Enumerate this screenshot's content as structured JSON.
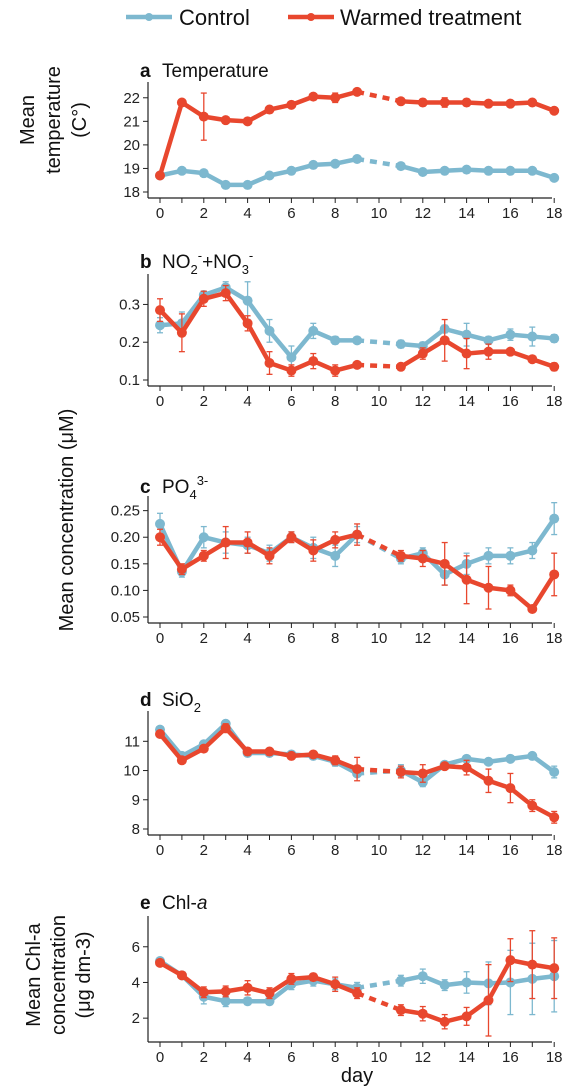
{
  "legend": {
    "control_label": "Control",
    "warmed_label": "Warmed treatment"
  },
  "colors": {
    "control": "#7db8cf",
    "warmed": "#e8472e"
  },
  "labels": {
    "temp_ylabel": [
      "Mean",
      "temperature",
      "(C°)"
    ],
    "conc_ylabel": "Mean concentration (μM)",
    "chl_ylabel": [
      "Mean Chl-a",
      "concentration",
      "(μg dm-3)"
    ],
    "xlabel": "day"
  },
  "chart_data": [
    {
      "type": "line",
      "letter": "a",
      "title": "Temperature",
      "ylim": [
        18,
        22.5
      ],
      "yticks": [
        18,
        19,
        20,
        21,
        22
      ],
      "x": [
        0,
        1,
        2,
        3,
        4,
        5,
        6,
        7,
        8,
        9,
        11,
        12,
        13,
        14,
        15,
        16,
        17,
        18
      ],
      "series": [
        {
          "name": "Control",
          "values": [
            18.7,
            18.9,
            18.8,
            18.3,
            18.3,
            18.7,
            18.9,
            19.15,
            19.2,
            19.4,
            19.1,
            18.85,
            18.9,
            18.95,
            18.9,
            18.9,
            18.9,
            18.6
          ],
          "err": [
            0,
            0.05,
            0,
            0,
            0.05,
            0,
            0,
            0,
            0,
            0,
            0,
            0,
            0,
            0,
            0,
            0,
            0,
            0
          ]
        },
        {
          "name": "Warmed treatment",
          "values": [
            18.7,
            21.8,
            21.2,
            21.05,
            21.0,
            21.5,
            21.7,
            22.05,
            22.0,
            22.25,
            21.85,
            21.8,
            21.8,
            21.8,
            21.75,
            21.75,
            21.8,
            21.45
          ],
          "err": [
            0,
            0,
            1.0,
            0,
            0,
            0,
            0,
            0.1,
            0.2,
            0,
            0,
            0.15,
            0.2,
            0.15,
            0,
            0,
            0,
            0.1
          ]
        }
      ]
    },
    {
      "type": "line",
      "letter": "b",
      "title": "NO2-+NO3-",
      "ylim": [
        0.1,
        0.37
      ],
      "yticks": [
        0.1,
        0.2,
        0.3
      ],
      "x": [
        0,
        1,
        2,
        3,
        4,
        5,
        6,
        7,
        8,
        9,
        11,
        12,
        13,
        14,
        15,
        16,
        17,
        18
      ],
      "series": [
        {
          "name": "Control",
          "values": [
            0.245,
            0.25,
            0.325,
            0.345,
            0.31,
            0.23,
            0.16,
            0.23,
            0.205,
            0.205,
            0.195,
            0.19,
            0.235,
            0.22,
            0.205,
            0.22,
            0.215,
            0.21
          ],
          "err": [
            0.02,
            0.03,
            0.01,
            0.015,
            0.05,
            0.03,
            0.03,
            0.02,
            0.01,
            0,
            0.01,
            0.01,
            0.01,
            0.03,
            0.01,
            0.015,
            0.025,
            0.01
          ]
        },
        {
          "name": "Warmed treatment",
          "values": [
            0.285,
            0.225,
            0.315,
            0.33,
            0.25,
            0.145,
            0.125,
            0.15,
            0.125,
            0.14,
            0.135,
            0.17,
            0.205,
            0.17,
            0.175,
            0.175,
            0.155,
            0.135
          ],
          "err": [
            0.03,
            0.05,
            0.02,
            0.02,
            0.02,
            0.03,
            0.015,
            0.02,
            0.015,
            0,
            0,
            0.015,
            0.055,
            0.04,
            0.02,
            0,
            0,
            0.01
          ]
        }
      ]
    },
    {
      "type": "line",
      "letter": "c",
      "title": "PO43-",
      "ylim": [
        0.05,
        0.27
      ],
      "yticks": [
        0.05,
        0.1,
        0.15,
        0.2,
        0.25
      ],
      "x": [
        0,
        1,
        2,
        3,
        4,
        5,
        6,
        7,
        8,
        9,
        11,
        12,
        13,
        14,
        15,
        16,
        17,
        18
      ],
      "series": [
        {
          "name": "Control",
          "values": [
            0.225,
            0.135,
            0.2,
            0.19,
            0.185,
            0.17,
            0.2,
            0.18,
            0.165,
            0.205,
            0.16,
            0.17,
            0.13,
            0.15,
            0.165,
            0.165,
            0.175,
            0.235
          ],
          "err": [
            0.02,
            0.01,
            0.02,
            0.02,
            0.015,
            0.015,
            0.01,
            0.02,
            0.02,
            0.015,
            0.01,
            0.01,
            0.02,
            0.02,
            0.015,
            0.015,
            0.015,
            0.03
          ]
        },
        {
          "name": "Warmed treatment",
          "values": [
            0.2,
            0.14,
            0.165,
            0.19,
            0.19,
            0.165,
            0.2,
            0.175,
            0.195,
            0.205,
            0.165,
            0.16,
            0.15,
            0.12,
            0.105,
            0.1,
            0.065,
            0.13
          ],
          "err": [
            0.015,
            0.01,
            0.01,
            0.03,
            0.02,
            0.015,
            0.01,
            0.02,
            0.015,
            0.02,
            0.01,
            0.015,
            0.04,
            0.045,
            0.04,
            0.01,
            0.005,
            0.04
          ]
        }
      ]
    },
    {
      "type": "line",
      "letter": "d",
      "title": "SiO2",
      "ylim": [
        8,
        11.9
      ],
      "yticks": [
        8,
        9,
        10,
        11
      ],
      "x": [
        0,
        1,
        2,
        3,
        4,
        5,
        6,
        7,
        8,
        9,
        11,
        12,
        13,
        14,
        15,
        16,
        17,
        18
      ],
      "series": [
        {
          "name": "Control",
          "values": [
            11.4,
            10.5,
            10.9,
            11.6,
            10.6,
            10.6,
            10.55,
            10.5,
            10.3,
            9.9,
            10.0,
            9.6,
            10.2,
            10.4,
            10.3,
            10.4,
            10.5,
            9.95
          ],
          "err": [
            0.1,
            0.1,
            0.1,
            0.1,
            0.1,
            0.1,
            0.1,
            0.1,
            0.15,
            0.1,
            0.2,
            0.15,
            0.1,
            0.1,
            0.1,
            0.1,
            0.1,
            0.2
          ]
        },
        {
          "name": "Warmed treatment",
          "values": [
            11.25,
            10.35,
            10.75,
            11.45,
            10.65,
            10.65,
            10.5,
            10.55,
            10.35,
            10.05,
            9.95,
            9.9,
            10.15,
            10.1,
            9.65,
            9.4,
            8.8,
            8.4
          ],
          "err": [
            0.1,
            0.1,
            0.1,
            0.15,
            0.1,
            0.1,
            0.1,
            0.1,
            0.15,
            0.4,
            0.2,
            0.3,
            0.1,
            0.25,
            0.4,
            0.5,
            0.2,
            0.2
          ]
        }
      ]
    },
    {
      "type": "line",
      "letter": "e",
      "title": "Chl-a",
      "ylim": [
        1.0,
        7.5
      ],
      "yticks": [
        2,
        4,
        6
      ],
      "x": [
        0,
        1,
        2,
        3,
        4,
        5,
        6,
        7,
        8,
        9,
        11,
        12,
        13,
        14,
        15,
        16,
        17,
        18
      ],
      "series": [
        {
          "name": "Control",
          "values": [
            5.2,
            4.4,
            3.2,
            2.95,
            2.95,
            2.95,
            3.9,
            4.1,
            3.9,
            3.7,
            4.1,
            4.35,
            3.85,
            4.0,
            3.95,
            4.0,
            4.2,
            4.35
          ],
          "err": [
            0.1,
            0.1,
            0.4,
            0.3,
            0.2,
            0.2,
            0.3,
            0.3,
            0.3,
            0.3,
            0.3,
            0.4,
            0.3,
            0.6,
            1.2,
            1.8,
            2.0,
            2.0
          ]
        },
        {
          "name": "Warmed treatment",
          "values": [
            5.1,
            4.4,
            3.45,
            3.5,
            3.7,
            3.4,
            4.2,
            4.3,
            3.9,
            3.4,
            2.45,
            2.25,
            1.8,
            2.1,
            3.0,
            5.25,
            5.0,
            4.8
          ],
          "err": [
            0.1,
            0.1,
            0.3,
            0.3,
            0.4,
            0.3,
            0.3,
            0.2,
            0.4,
            0.3,
            0.3,
            0.4,
            0.4,
            0.5,
            2.0,
            1.2,
            1.9,
            1.7
          ]
        }
      ]
    }
  ]
}
